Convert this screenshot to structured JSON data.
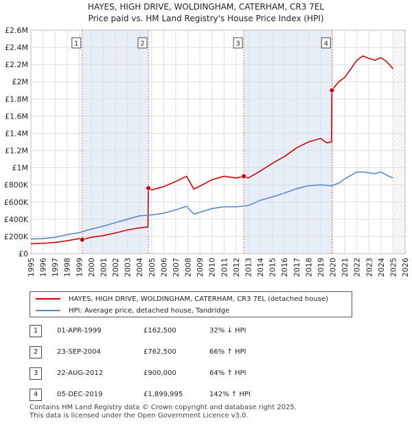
{
  "chart_data": {
    "type": "line",
    "title": "HAYES, HIGH DRIVE, WOLDINGHAM, CATERHAM, CR3 7EL",
    "subtitle": "Price paid vs. HM Land Registry's House Price Index (HPI)",
    "xlabel": "",
    "ylabel": "",
    "xlim": [
      1995,
      2026
    ],
    "ylim": [
      0,
      2600000
    ],
    "x_ticks": [
      "1995",
      "1996",
      "1997",
      "1998",
      "1999",
      "2000",
      "2001",
      "2002",
      "2003",
      "2004",
      "2005",
      "2006",
      "2007",
      "2008",
      "2009",
      "2010",
      "2011",
      "2012",
      "2013",
      "2014",
      "2015",
      "2016",
      "2017",
      "2018",
      "2019",
      "2020",
      "2021",
      "2022",
      "2023",
      "2024",
      "2025",
      "2026"
    ],
    "y_ticks": [
      {
        "value": 0,
        "label": "£0"
      },
      {
        "value": 200000,
        "label": "£200K"
      },
      {
        "value": 400000,
        "label": "£400K"
      },
      {
        "value": 600000,
        "label": "£600K"
      },
      {
        "value": 800000,
        "label": "£800K"
      },
      {
        "value": 1000000,
        "label": "£1M"
      },
      {
        "value": 1200000,
        "label": "£1.2M"
      },
      {
        "value": 1400000,
        "label": "£1.4M"
      },
      {
        "value": 1600000,
        "label": "£1.6M"
      },
      {
        "value": 1800000,
        "label": "£1.8M"
      },
      {
        "value": 2000000,
        "label": "£2M"
      },
      {
        "value": 2200000,
        "label": "£2.2M"
      },
      {
        "value": 2400000,
        "label": "£2.4M"
      },
      {
        "value": 2600000,
        "label": "£2.6M"
      }
    ],
    "grid": true,
    "shaded_spans": [
      [
        1999.25,
        2004.73
      ],
      [
        2012.64,
        2019.93
      ]
    ],
    "hatched_future_from": 2025.0,
    "series": [
      {
        "name": "HAYES, HIGH DRIVE, WOLDINGHAM, CATERHAM, CR3 7EL (detached house)",
        "color": "#cc0000",
        "x": [
          1995.0,
          1996.0,
          1997.0,
          1998.0,
          1999.0,
          1999.25,
          2000.0,
          2001.0,
          2002.0,
          2003.0,
          2004.0,
          2004.7,
          2004.73,
          2005.0,
          2006.0,
          2007.0,
          2007.9,
          2008.5,
          2009.2,
          2010.0,
          2011.0,
          2012.0,
          2012.64,
          2013.0,
          2014.0,
          2015.0,
          2016.0,
          2017.0,
          2018.0,
          2019.0,
          2019.5,
          2019.9,
          2019.93,
          2020.5,
          2021.0,
          2022.0,
          2022.5,
          2023.0,
          2023.5,
          2024.0,
          2024.5,
          2025.0
        ],
        "values": [
          115000,
          120000,
          130000,
          150000,
          175000,
          162500,
          190000,
          210000,
          240000,
          275000,
          300000,
          310000,
          762500,
          740000,
          780000,
          840000,
          900000,
          750000,
          800000,
          860000,
          900000,
          880000,
          900000,
          880000,
          960000,
          1050000,
          1130000,
          1230000,
          1300000,
          1340000,
          1290000,
          1300000,
          1899995,
          2000000,
          2050000,
          2250000,
          2300000,
          2270000,
          2250000,
          2280000,
          2230000,
          2150000
        ]
      },
      {
        "name": "HPI: Average price, detached house, Tandridge",
        "color": "#5b87c9",
        "x": [
          1995.0,
          1996.0,
          1997.0,
          1998.0,
          1999.0,
          2000.0,
          2001.0,
          2002.0,
          2003.0,
          2004.0,
          2005.0,
          2006.0,
          2007.0,
          2007.9,
          2008.5,
          2009.2,
          2010.0,
          2011.0,
          2012.0,
          2013.0,
          2014.0,
          2015.0,
          2016.0,
          2017.0,
          2018.0,
          2019.0,
          2019.9,
          2020.5,
          2021.0,
          2022.0,
          2022.5,
          2023.0,
          2023.5,
          2024.0,
          2024.5,
          2025.0
        ],
        "values": [
          170000,
          175000,
          190000,
          220000,
          245000,
          285000,
          320000,
          360000,
          400000,
          440000,
          450000,
          470000,
          510000,
          550000,
          460000,
          490000,
          525000,
          545000,
          545000,
          560000,
          620000,
          660000,
          705000,
          755000,
          790000,
          800000,
          790000,
          820000,
          870000,
          950000,
          950000,
          940000,
          930000,
          950000,
          910000,
          880000
        ]
      }
    ],
    "sales": [
      {
        "label": "1",
        "x": 1999.25,
        "value": 162500
      },
      {
        "label": "2",
        "x": 2004.73,
        "value": 762500
      },
      {
        "label": "3",
        "x": 2012.64,
        "value": 900000
      },
      {
        "label": "4",
        "x": 2019.93,
        "value": 1899995
      }
    ]
  },
  "legend": {
    "property_label": "HAYES, HIGH DRIVE, WOLDINGHAM, CATERHAM, CR3 7EL (detached house)",
    "hpi_label": "HPI: Average price, detached house, Tandridge"
  },
  "sales_table": [
    {
      "num": "1",
      "date": "01-APR-1999",
      "price": "£162,500",
      "delta": "32% ↓ HPI"
    },
    {
      "num": "2",
      "date": "23-SEP-2004",
      "price": "£762,500",
      "delta": "66% ↑ HPI"
    },
    {
      "num": "3",
      "date": "22-AUG-2012",
      "price": "£900,000",
      "delta": "64% ↑ HPI"
    },
    {
      "num": "4",
      "date": "05-DEC-2019",
      "price": "£1,899,995",
      "delta": "142% ↑ HPI"
    }
  ],
  "footer": {
    "line1": "Contains HM Land Registry data © Crown copyright and database right 2025.",
    "line2": "This data is licensed under the Open Government Licence v3.0."
  }
}
